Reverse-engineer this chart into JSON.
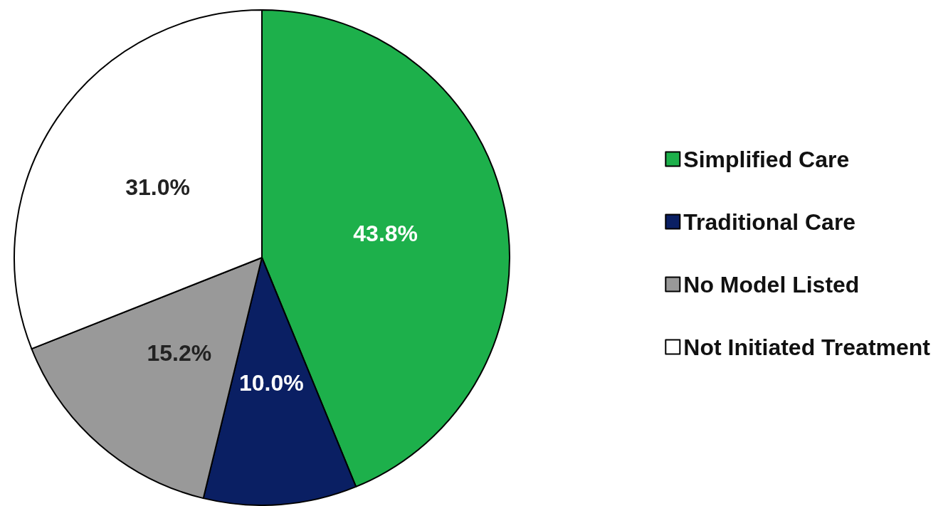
{
  "chart_data": {
    "type": "pie",
    "categories": [
      "Simplified Care",
      "Traditional Care",
      "No Model Listed",
      "Not Initiated Treatment"
    ],
    "values": [
      43.8,
      10.0,
      15.2,
      31.0
    ],
    "value_labels": [
      "43.8%",
      "10.0%",
      "15.2%",
      "31.0%"
    ],
    "colors": [
      "#1db04b",
      "#0a1f63",
      "#999999",
      "#ffffff"
    ],
    "legend": "right"
  }
}
